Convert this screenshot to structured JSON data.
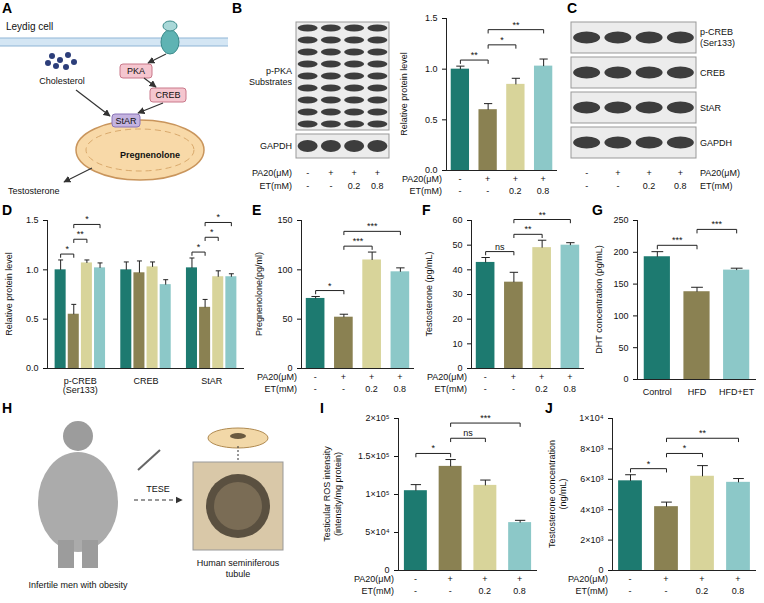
{
  "chart_data": [
    {
      "panel": "B",
      "type": "bar",
      "ylabel": "Relative protein level",
      "categories": [
        null,
        null,
        null,
        null
      ],
      "values": [
        1.0,
        0.6,
        0.85,
        1.03
      ],
      "errors": [
        0.03,
        0.06,
        0.06,
        0.07
      ],
      "colors": [
        "#1d7a70",
        "#8a8152",
        "#d8d49a",
        "#8cc8c8"
      ],
      "ylim": [
        0,
        1.5
      ],
      "yticks": [
        {
          "value": 0,
          "label": "0.0"
        },
        0.5,
        {
          "value": 1,
          "label": "1.0"
        },
        1.5
      ],
      "tick_labels": "y",
      "annotations": [
        {
          "from": 0,
          "to": 1,
          "label": "**"
        },
        {
          "from": 1,
          "to": 2,
          "label": "*"
        },
        {
          "from": 1,
          "to": 3,
          "label": "**"
        }
      ],
      "conditions": [
        {
          "label": "PA20(μM)",
          "values": [
            "-",
            "+",
            "+",
            "+"
          ]
        },
        {
          "label": "ET(mM)",
          "values": [
            "-",
            "-",
            "0.2",
            "0.8"
          ]
        }
      ]
    },
    {
      "panel": "D",
      "type": "grouped_bar",
      "ylabel": "Relative protein level",
      "categories": [
        "p-CREB(Ser133)",
        "CREB",
        "StAR"
      ],
      "series": [
        {
          "color": "#1d7a70",
          "values": [
            1.0,
            1.0,
            1.02
          ],
          "errors": [
            0.1,
            0.08,
            0.1
          ]
        },
        {
          "color": "#8a8152",
          "values": [
            0.55,
            0.97,
            0.62
          ],
          "errors": [
            0.1,
            0.12,
            0.08
          ]
        },
        {
          "color": "#d8d49a",
          "values": [
            1.07,
            1.03,
            0.93
          ],
          "errors": [
            0.03,
            0.05,
            0.06
          ]
        },
        {
          "color": "#8cc8c8",
          "values": [
            1.02,
            0.85,
            0.93
          ],
          "errors": [
            0.05,
            0.05,
            0.03
          ]
        }
      ],
      "ylim": [
        0,
        1.5
      ],
      "yticks": [
        {
          "value": 0,
          "label": "0.0"
        },
        0.5,
        {
          "value": 1,
          "label": "1.0"
        },
        1.5
      ],
      "annotations": [
        {
          "group": 0,
          "from": 0,
          "to": 1,
          "label": "*"
        },
        {
          "group": 0,
          "from": 1,
          "to": 2,
          "label": "**"
        },
        {
          "group": 0,
          "from": 1,
          "to": 3,
          "label": "*"
        },
        {
          "group": 2,
          "from": 0,
          "to": 1,
          "label": "*"
        },
        {
          "group": 2,
          "from": 1,
          "to": 2,
          "label": "*"
        },
        {
          "group": 2,
          "from": 1,
          "to": 3,
          "label": "*"
        }
      ]
    },
    {
      "panel": "E",
      "type": "bar",
      "ylabel": "Pregnenolone(pg/ml)",
      "categories": [
        null,
        null,
        null,
        null
      ],
      "values": [
        71,
        52,
        110,
        98
      ],
      "errors": [
        2,
        3,
        8,
        4
      ],
      "colors": [
        "#1d7a70",
        "#8a8152",
        "#d8d49a",
        "#8cc8c8"
      ],
      "ylim": [
        0,
        150
      ],
      "yticks": [
        0,
        50,
        100,
        150
      ],
      "tick_labels": "y",
      "annotations": [
        {
          "from": 0,
          "to": 1,
          "label": "*"
        },
        {
          "from": 1,
          "to": 2,
          "label": "***"
        },
        {
          "from": 1,
          "to": 3,
          "label": "***"
        }
      ],
      "conditions": [
        {
          "label": "PA20(μM)",
          "values": [
            "-",
            "+",
            "+",
            "+"
          ]
        },
        {
          "label": "ET(mM)",
          "values": [
            "-",
            "-",
            "0.2",
            "0.8"
          ]
        }
      ]
    },
    {
      "panel": "F",
      "type": "bar",
      "ylabel": "Testosterone (pg/mL)",
      "categories": [
        null,
        null,
        null,
        null
      ],
      "values": [
        43,
        35,
        49,
        50
      ],
      "errors": [
        2,
        4,
        3,
        1
      ],
      "colors": [
        "#1d7a70",
        "#8a8152",
        "#d8d49a",
        "#8cc8c8"
      ],
      "ylim": [
        0,
        60
      ],
      "yticks": [
        0,
        10,
        20,
        30,
        40,
        50,
        60
      ],
      "tick_labels": "y",
      "annotations": [
        {
          "from": 0,
          "to": 1,
          "label": "ns"
        },
        {
          "from": 1,
          "to": 2,
          "label": "**"
        },
        {
          "from": 1,
          "to": 3,
          "label": "**"
        }
      ],
      "conditions": [
        {
          "label": "PA20(μM)",
          "values": [
            "-",
            "+",
            "+",
            "+"
          ]
        },
        {
          "label": "ET(mM)",
          "values": [
            "-",
            "-",
            "0.2",
            "0.8"
          ]
        }
      ]
    },
    {
      "panel": "G",
      "type": "bar",
      "ylabel": "DHT concentration (pg/mL)",
      "categories": [
        "Control",
        "HFD",
        "HFD+ET"
      ],
      "values": [
        193,
        138,
        172
      ],
      "errors": [
        8,
        7,
        3
      ],
      "colors": [
        "#1d7a70",
        "#8a8152",
        "#8cc8c8"
      ],
      "ylim": [
        0,
        250
      ],
      "yticks": [
        0,
        50,
        100,
        150,
        200,
        250
      ],
      "annotations": [
        {
          "from": 0,
          "to": 1,
          "label": "***"
        },
        {
          "from": 1,
          "to": 2,
          "label": "***"
        }
      ]
    },
    {
      "panel": "I",
      "type": "bar",
      "ylabel": "Testicular ROS intensity (intensity/mg protein)",
      "categories": [
        null,
        null,
        null,
        null
      ],
      "values": [
        105000,
        137000,
        112000,
        63000
      ],
      "errors": [
        8000,
        9000,
        7000,
        3000
      ],
      "colors": [
        "#1d7a70",
        "#8a8152",
        "#d8d49a",
        "#8cc8c8"
      ],
      "ylim": [
        0,
        200000
      ],
      "yticks": [
        0,
        {
          "value": 50000,
          "label": "5×10⁴"
        },
        {
          "value": 100000,
          "label": "1×10⁵"
        },
        {
          "value": 150000,
          "label": "1.5×10⁵"
        },
        {
          "value": 200000,
          "label": "2×10⁵"
        }
      ],
      "tick_labels": "y",
      "annotations": [
        {
          "from": 0,
          "to": 1,
          "label": "*"
        },
        {
          "from": 1,
          "to": 2,
          "label": "ns"
        },
        {
          "from": 1,
          "to": 3,
          "label": "***"
        }
      ],
      "conditions": [
        {
          "label": "PA20(μM)",
          "values": [
            "-",
            "+",
            "+",
            "+"
          ]
        },
        {
          "label": "ET(mM)",
          "values": [
            "-",
            "-",
            "0.2",
            "0.8"
          ]
        }
      ]
    },
    {
      "panel": "J",
      "type": "bar",
      "ylabel": "Testosterone concentration(ng/mL)",
      "categories": [
        null,
        null,
        null,
        null
      ],
      "values": [
        5900,
        4200,
        6200,
        5800
      ],
      "errors": [
        400,
        300,
        700,
        250
      ],
      "colors": [
        "#1d7a70",
        "#8a8152",
        "#d8d49a",
        "#8cc8c8"
      ],
      "ylim": [
        0,
        10000
      ],
      "yticks": [
        0,
        {
          "value": 2000,
          "label": "2×10³"
        },
        {
          "value": 4000,
          "label": "4×10³"
        },
        {
          "value": 6000,
          "label": "6×10³"
        },
        {
          "value": 8000,
          "label": "8×10³"
        },
        {
          "value": 10000,
          "label": "1×10⁴"
        }
      ],
      "tick_labels": "y",
      "annotations": [
        {
          "from": 0,
          "to": 1,
          "label": "*"
        },
        {
          "from": 1,
          "to": 2,
          "label": "*"
        },
        {
          "from": 1,
          "to": 3,
          "label": "**"
        }
      ],
      "conditions": [
        {
          "label": "PA20(μM)",
          "values": [
            "-",
            "+",
            "+",
            "+"
          ]
        },
        {
          "label": "ET(mM)",
          "values": [
            "-",
            "-",
            "0.2",
            "0.8"
          ]
        }
      ]
    }
  ],
  "blots": [
    {
      "panel": "B",
      "bands": [
        "p-PKA Substrates",
        "GAPDH"
      ],
      "conditions": [
        {
          "label": "PA20(μM)",
          "values": [
            "-",
            "+",
            "+",
            "+"
          ]
        },
        {
          "label": "ET(mM)",
          "values": [
            "-",
            "-",
            "0.2",
            "0.8"
          ]
        }
      ]
    },
    {
      "panel": "C",
      "bands": [
        "p-CREB (Ser133)",
        "CREB",
        "StAR",
        "GAPDH"
      ],
      "conditions": [
        {
          "label": "PA20(μM)",
          "values": [
            "-",
            "+",
            "+",
            "+"
          ]
        },
        {
          "label": "ET(mM)",
          "values": [
            "-",
            "-",
            "0.2",
            "0.8"
          ]
        }
      ]
    }
  ],
  "diagrams": [
    {
      "panel": "A",
      "texts": {
        "cell": "Leydig cell",
        "pka": "PKA",
        "creb": "CREB",
        "cholesterol": "Cholesterol",
        "star": "StAR",
        "pregnenolone": "Pregnenolone",
        "testosterone": "Testosterone"
      }
    },
    {
      "panel": "H",
      "texts": {
        "group": "Infertile men with obesity",
        "method": "TESE",
        "tubule": "Human seminiferous tubule"
      }
    }
  ]
}
